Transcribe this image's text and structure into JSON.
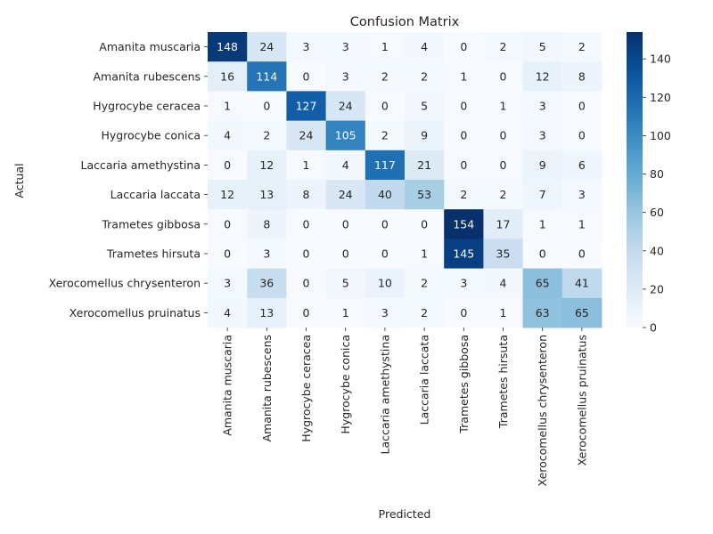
{
  "chart_data": {
    "type": "heatmap",
    "title": "Confusion Matrix",
    "xlabel": "Predicted",
    "ylabel": "Actual",
    "categories": [
      "Amanita muscaria",
      "Amanita rubescens",
      "Hygrocybe ceracea",
      "Hygrocybe conica",
      "Laccaria amethystina",
      "Laccaria laccata",
      "Trametes gibbosa",
      "Trametes hirsuta",
      "Xerocomellus chrysenteron",
      "Xerocomellus pruinatus"
    ],
    "matrix": [
      [
        148,
        24,
        3,
        3,
        1,
        4,
        0,
        2,
        5,
        2
      ],
      [
        16,
        114,
        0,
        3,
        2,
        2,
        1,
        0,
        12,
        8
      ],
      [
        1,
        0,
        127,
        24,
        0,
        5,
        0,
        1,
        3,
        0
      ],
      [
        4,
        2,
        24,
        105,
        2,
        9,
        0,
        0,
        3,
        0
      ],
      [
        0,
        12,
        1,
        4,
        117,
        21,
        0,
        0,
        9,
        6
      ],
      [
        12,
        13,
        8,
        24,
        40,
        53,
        2,
        2,
        7,
        3
      ],
      [
        0,
        8,
        0,
        0,
        0,
        0,
        154,
        17,
        1,
        1
      ],
      [
        0,
        3,
        0,
        0,
        0,
        1,
        145,
        35,
        0,
        0
      ],
      [
        3,
        36,
        0,
        5,
        10,
        2,
        3,
        4,
        65,
        41
      ],
      [
        4,
        13,
        0,
        1,
        3,
        2,
        0,
        1,
        63,
        65
      ]
    ],
    "colorscale": "Blues",
    "vmin": 0,
    "vmax": 154,
    "colorbar_ticks": [
      0,
      20,
      40,
      60,
      80,
      100,
      120,
      140
    ],
    "annotated": true
  }
}
